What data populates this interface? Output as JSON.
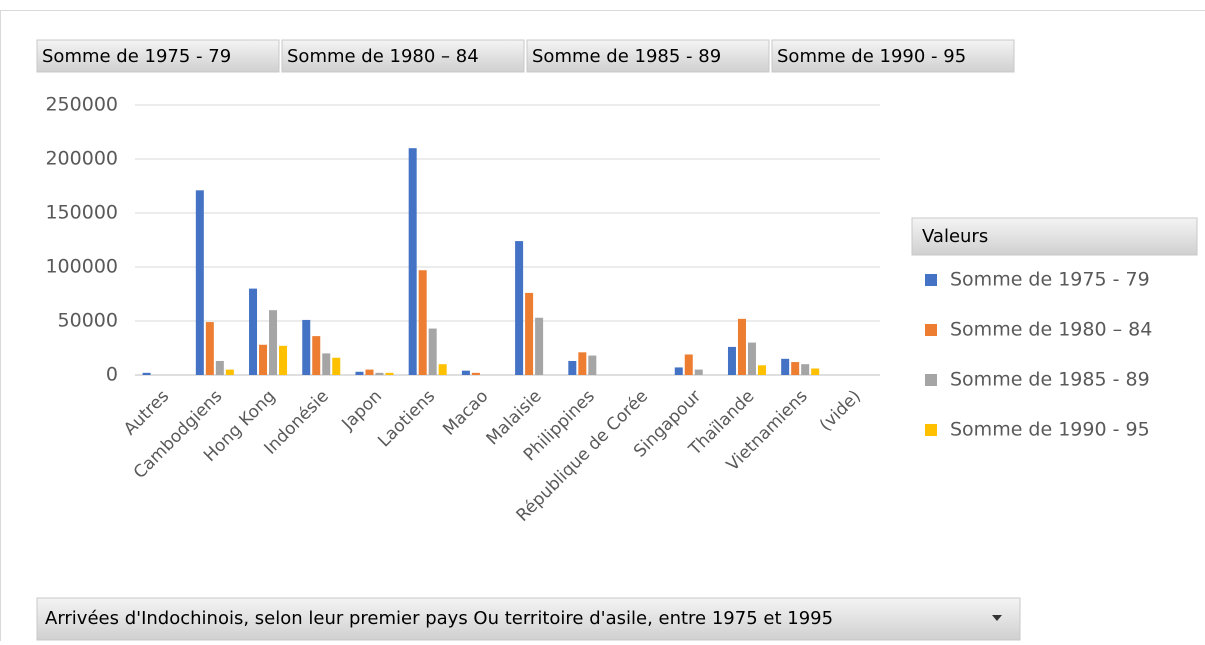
{
  "chart_data": {
    "type": "bar",
    "legend_title": "Valeurs",
    "axis_field": "Arrivées d'Indochinois, selon leur premier pays Ou territoire d'asile, entre 1975 et 1995",
    "categories": [
      "Autres",
      "Cambodgiens",
      "Hong Kong",
      "Indonésie",
      "Japon",
      "Laotiens",
      "Macao",
      "Malaisie",
      "Philippines",
      "République de Corée",
      "Singapour",
      "Thaïlande",
      "Vietnamiens",
      "(vide)"
    ],
    "series": [
      {
        "name": "Somme de 1975 - 79",
        "color": "#4472c4",
        "values": [
          2000,
          171000,
          80000,
          51000,
          3000,
          210000,
          4000,
          124000,
          13000,
          0,
          7000,
          26000,
          15000,
          null
        ]
      },
      {
        "name": "Somme de 1980 – 84",
        "color": "#ed7d31",
        "values": [
          0,
          49000,
          28000,
          36000,
          5000,
          97000,
          2000,
          76000,
          21000,
          0,
          19000,
          52000,
          12000,
          null
        ]
      },
      {
        "name": "Somme de 1985 - 89",
        "color": "#a5a5a5",
        "values": [
          0,
          13000,
          60000,
          20000,
          2000,
          43000,
          0,
          53000,
          18000,
          0,
          5000,
          30000,
          10000,
          null
        ]
      },
      {
        "name": "Somme de 1990 - 95",
        "color": "#ffc000",
        "values": [
          0,
          5000,
          27000,
          16000,
          2000,
          10000,
          0,
          0,
          0,
          0,
          0,
          9000,
          6000,
          null
        ]
      }
    ],
    "ylim": [
      0,
      250000
    ],
    "yticks": [
      0,
      50000,
      100000,
      150000,
      200000,
      250000
    ],
    "grid": true,
    "legend": "right"
  }
}
